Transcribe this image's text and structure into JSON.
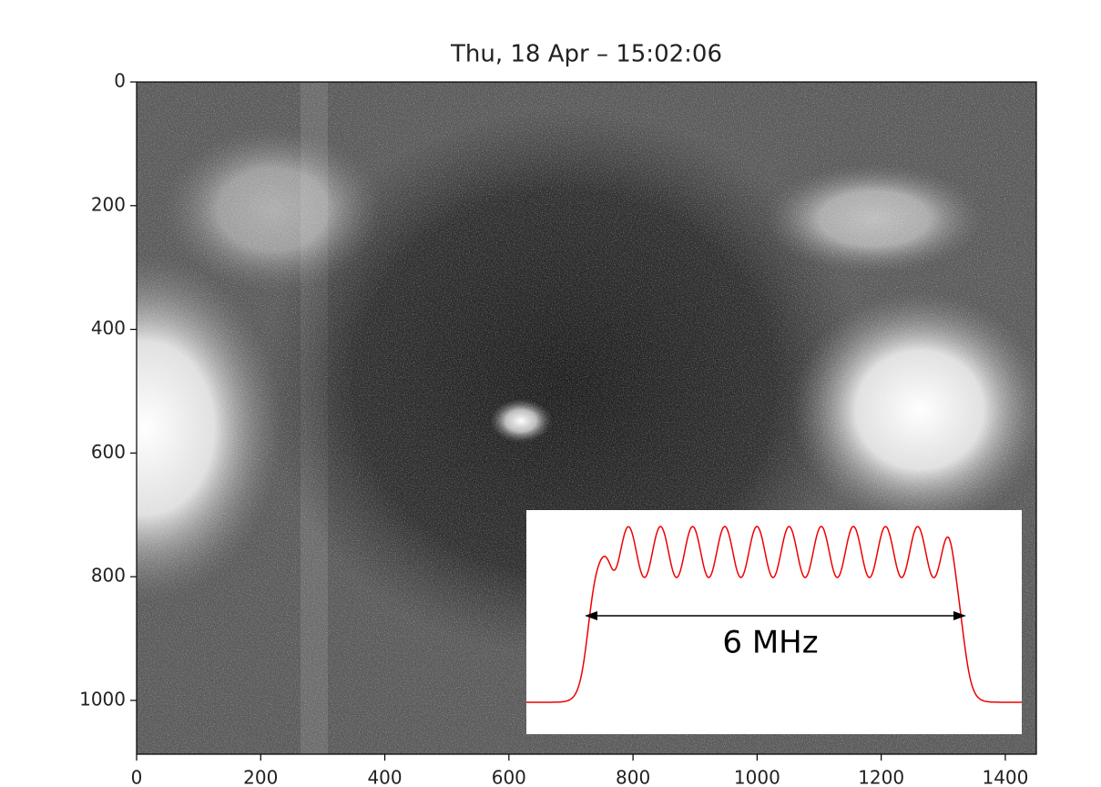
{
  "chart_data": {
    "type": "image",
    "title": "Thu, 18 Apr – 15:02:06",
    "xlim": [
      0,
      1450
    ],
    "ylim": [
      1087,
      0
    ],
    "xticks": [
      0,
      200,
      400,
      600,
      800,
      1000,
      1200,
      1400
    ],
    "yticks": [
      0,
      200,
      400,
      600,
      800,
      1000
    ],
    "annotations": [
      "6 MHz"
    ]
  }
}
